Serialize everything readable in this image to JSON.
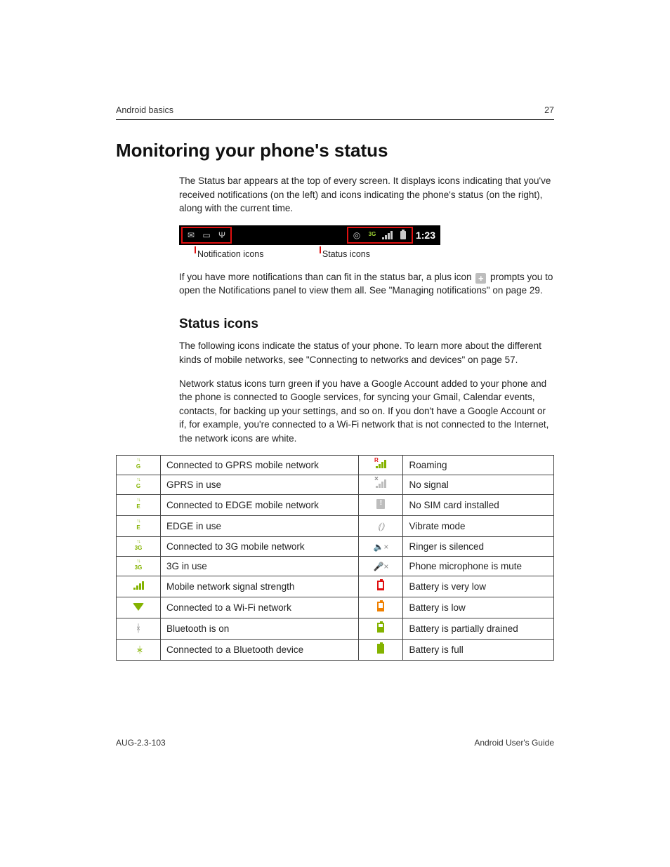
{
  "header": {
    "section": "Android basics",
    "page_number": "27"
  },
  "title": "Monitoring your phone's status",
  "intro": "The Status bar appears at the top of every screen. It displays icons indicating that you've received notifications (on the left) and icons indicating the phone's status (on the right), along with the current time.",
  "statusbar": {
    "time": "1:23",
    "net_label": "3G",
    "callout_left": "Notification icons",
    "callout_right": "Status icons"
  },
  "plus_para_a": "If you have more notifications than can fit in the status bar, a plus icon",
  "plus_glyph": "+",
  "plus_para_b": "prompts you to open the Notifications panel to view them all. See \"Managing notifications\" on page 29.",
  "subhead": "Status icons",
  "sub_p1": "The following icons indicate the status of your phone. To learn more about the different kinds of mobile networks, see \"Connecting to networks and devices\" on page 57.",
  "sub_p2": "Network status icons turn green if you have a Google Account added to your phone and the phone is connected to Google services, for syncing your Gmail, Calendar events, contacts, for backing up your settings, and so on. If you don't have a Google Account or if, for example, you're connected to a Wi-Fi network that is not connected to the Internet, the network icons are white.",
  "table": {
    "rows": [
      {
        "l_icon": "gprs",
        "l_label": "G",
        "l": "Connected to GPRS mobile network",
        "r_icon": "roaming",
        "r": "Roaming"
      },
      {
        "l_icon": "gprs",
        "l_label": "G",
        "l": "GPRS in use",
        "r_icon": "nosignal",
        "r": "No signal"
      },
      {
        "l_icon": "edge",
        "l_label": "E",
        "l": "Connected to EDGE mobile network",
        "r_icon": "nosim",
        "r": "No SIM card installed"
      },
      {
        "l_icon": "edge",
        "l_label": "E",
        "l": "EDGE in use",
        "r_icon": "vibrate",
        "r": "Vibrate mode"
      },
      {
        "l_icon": "3g",
        "l_label": "3G",
        "l": "Connected to 3G mobile network",
        "r_icon": "silenced",
        "r": "Ringer is silenced"
      },
      {
        "l_icon": "3g",
        "l_label": "3G",
        "l": "3G in use",
        "r_icon": "micmute",
        "r": "Phone microphone is mute"
      },
      {
        "l_icon": "signal",
        "l": "Mobile network signal strength",
        "r_icon": "batt_vlow",
        "r": "Battery is very low"
      },
      {
        "l_icon": "wifi",
        "l": "Connected to a Wi-Fi network",
        "r_icon": "batt_low",
        "r": "Battery is low"
      },
      {
        "l_icon": "bt",
        "l": "Bluetooth is on",
        "r_icon": "batt_part",
        "r": "Battery is partially drained"
      },
      {
        "l_icon": "bt_conn",
        "l": "Connected to a Bluetooth device",
        "r_icon": "batt_full",
        "r": "Battery is full"
      }
    ]
  },
  "footer": {
    "left": "AUG-2.3-103",
    "right": "Android User's Guide"
  },
  "colors": {
    "accent_green": "#84b300",
    "callout_red": "#e01010",
    "icon_gray": "#8a8a8a",
    "batt_orange": "#f08000"
  }
}
